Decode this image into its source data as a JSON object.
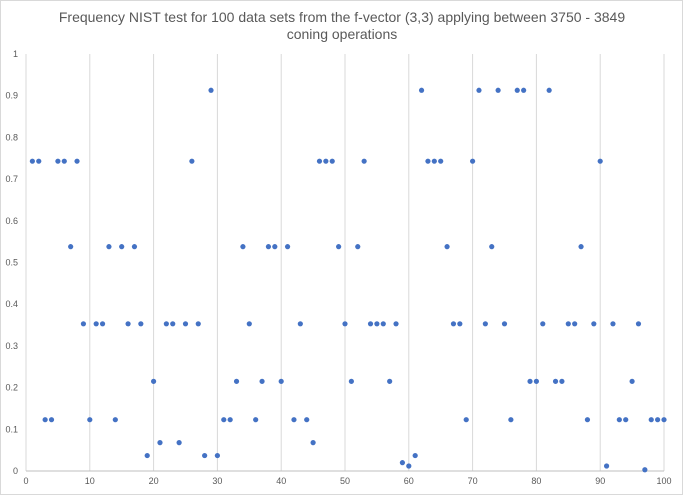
{
  "chart_data": {
    "type": "scatter",
    "title": "Frequency NIST test for 100 data sets from the f-vector (3,3) applying between 3750 - 3849 coning operations",
    "title_lines": [
      "Frequency NIST test for 100 data sets from the f-vector (3,3) applying between 3750 - 3849",
      "coning operations"
    ],
    "xlabel": "",
    "ylabel": "",
    "xlim": [
      0,
      100
    ],
    "ylim": [
      0,
      1
    ],
    "x_ticks": [
      "0",
      "10",
      "20",
      "30",
      "40",
      "50",
      "60",
      "70",
      "80",
      "90",
      "100"
    ],
    "y_ticks": [
      "0",
      "0.1",
      "0.2",
      "0.3",
      "0.4",
      "0.5",
      "0.6",
      "0.7",
      "0.8",
      "0.9",
      "1"
    ],
    "grid": "vertical",
    "legend": "none",
    "marker_color": "#4472c4",
    "x": [
      1,
      2,
      3,
      4,
      5,
      6,
      7,
      8,
      9,
      10,
      11,
      12,
      13,
      14,
      15,
      16,
      17,
      18,
      19,
      20,
      21,
      22,
      23,
      24,
      25,
      26,
      27,
      28,
      29,
      30,
      31,
      32,
      33,
      34,
      35,
      36,
      37,
      38,
      39,
      40,
      41,
      42,
      43,
      44,
      45,
      46,
      47,
      48,
      49,
      50,
      51,
      52,
      53,
      54,
      55,
      56,
      57,
      58,
      59,
      60,
      61,
      62,
      63,
      64,
      65,
      66,
      67,
      68,
      69,
      70,
      71,
      72,
      73,
      74,
      75,
      76,
      77,
      78,
      79,
      80,
      81,
      82,
      83,
      84,
      85,
      86,
      87,
      88,
      89,
      90,
      91,
      92,
      93,
      94,
      95,
      96,
      97,
      98,
      99,
      100
    ],
    "y": [
      0.743,
      0.743,
      0.123,
      0.123,
      0.743,
      0.743,
      0.538,
      0.743,
      0.353,
      0.123,
      0.353,
      0.353,
      0.538,
      0.123,
      0.538,
      0.353,
      0.538,
      0.353,
      0.037,
      0.215,
      0.068,
      0.353,
      0.353,
      0.068,
      0.353,
      0.743,
      0.353,
      0.037,
      0.913,
      0.037,
      0.123,
      0.123,
      0.215,
      0.538,
      0.353,
      0.123,
      0.215,
      0.538,
      0.538,
      0.215,
      0.538,
      0.123,
      0.353,
      0.123,
      0.068,
      0.743,
      0.743,
      0.743,
      0.538,
      0.353,
      0.215,
      0.538,
      0.743,
      0.353,
      0.353,
      0.353,
      0.215,
      0.353,
      0.02,
      0.012,
      0.037,
      0.913,
      0.743,
      0.743,
      0.743,
      0.538,
      0.353,
      0.353,
      0.123,
      0.743,
      0.913,
      0.353,
      0.538,
      0.913,
      0.353,
      0.123,
      0.913,
      0.913,
      0.215,
      0.215,
      0.353,
      0.913,
      0.215,
      0.215,
      0.353,
      0.353,
      0.538,
      0.123,
      0.353,
      0.743,
      0.012,
      0.353,
      0.123,
      0.123,
      0.215,
      0.353,
      0.003,
      0.123,
      0.123,
      0.123
    ]
  }
}
